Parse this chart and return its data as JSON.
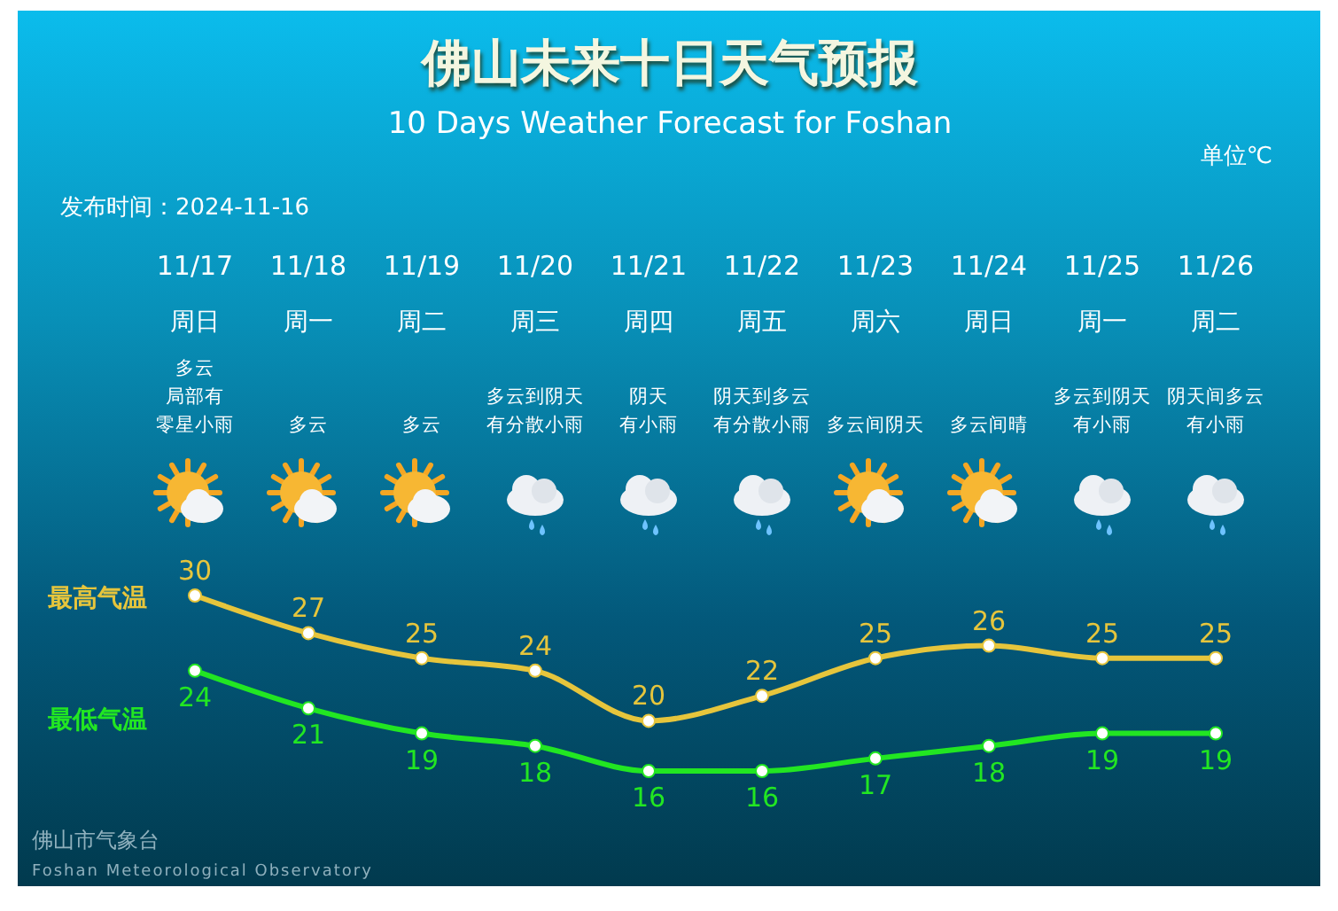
{
  "chart_data": {
    "type": "line",
    "title": "佛山未来十日天气预报",
    "subtitle": "10 Days Weather Forecast for Foshan",
    "annotations": [
      "单位℃",
      "发布时间：2024-11-16",
      "佛山市气象台",
      "Foshan Meteorological Observatory",
      "周日",
      "周一",
      "周二",
      "周三",
      "周四",
      "周五",
      "周六",
      "周日",
      "周一",
      "周二",
      "多云",
      "局部有",
      "零星小雨",
      "多云",
      "多云",
      "多云到阴天",
      "有分散小雨",
      "阴天",
      "有小雨",
      "阴天到多云",
      "有分散小雨",
      "多云间阴天",
      "多云间晴",
      "多云到阴天",
      "有小雨",
      "阴天间多云",
      "有小雨"
    ],
    "categories": [
      "11/17",
      "11/18",
      "11/19",
      "11/20",
      "11/21",
      "11/22",
      "11/23",
      "11/24",
      "11/25",
      "11/26"
    ],
    "series": [
      {
        "name": "最高气温",
        "color": "#e6c53c",
        "values": [
          30,
          27,
          25,
          24,
          20,
          22,
          25,
          26,
          25,
          25
        ]
      },
      {
        "name": "最低气温",
        "color": "#22e622",
        "values": [
          24,
          21,
          19,
          18,
          16,
          16,
          17,
          18,
          19,
          19
        ]
      }
    ],
    "tick_labels": "x",
    "data_labels": true,
    "marker": "circle",
    "line_style": "solid"
  }
}
